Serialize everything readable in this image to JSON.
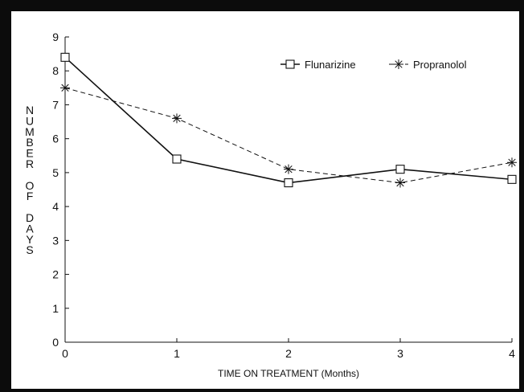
{
  "chart_data": {
    "type": "line",
    "x": [
      0,
      1,
      2,
      3,
      4
    ],
    "xlim": [
      0,
      4
    ],
    "ylim": [
      0,
      9
    ],
    "x_ticks": [
      "0",
      "1",
      "2",
      "3",
      "4"
    ],
    "y_ticks": [
      "0",
      "1",
      "2",
      "3",
      "4",
      "5",
      "6",
      "7",
      "8",
      "9"
    ],
    "xlabel": "TIME ON TREATMENT (Months)",
    "ylabel": "NUMBER OF DAYS",
    "legend_position": "top-right",
    "grid": false,
    "series": [
      {
        "name": "Flunarizine",
        "values": [
          8.4,
          5.4,
          4.7,
          5.1,
          4.8
        ],
        "marker": "square",
        "line_style": "solid",
        "color": "#111111"
      },
      {
        "name": "Propranolol",
        "values": [
          7.5,
          6.6,
          5.1,
          4.7,
          5.3
        ],
        "marker": "asterisk",
        "line_style": "dashed",
        "color": "#111111"
      }
    ]
  }
}
